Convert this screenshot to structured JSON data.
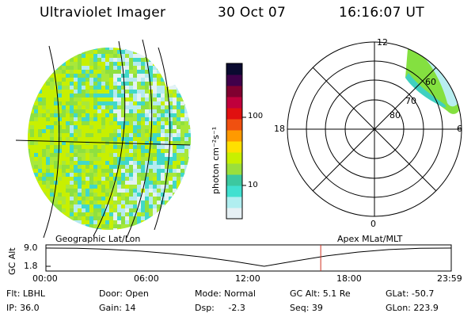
{
  "header": {
    "instrument": "Ultraviolet Imager",
    "date": "30 Oct 07",
    "time": "16:16:07 UT"
  },
  "colorbar": {
    "unit_label": "photon cm⁻²s⁻¹",
    "ticks": [
      "100",
      "10"
    ],
    "colors": [
      "#e6f0f4",
      "#b0eef0",
      "#40e0d0",
      "#3cc8a0",
      "#9adf3c",
      "#c8f000",
      "#ffe000",
      "#ff9a00",
      "#f05010",
      "#e01010",
      "#c0003c",
      "#800030",
      "#40004a",
      "#0a0a30"
    ],
    "scale": "log"
  },
  "left_panel": {
    "caption": "Geographic Lat/Lon"
  },
  "right_panel": {
    "caption": "Apex MLat/MLT",
    "mlt_labels": {
      "top": "12",
      "left": "18",
      "right": "6",
      "bottom": "0"
    },
    "mlat_labels": [
      "60",
      "70",
      "80"
    ]
  },
  "timeline": {
    "ylabel": "GC Alt",
    "ytick_top": "9.0",
    "ytick_bottom": "1.8",
    "xticks": [
      "00:00",
      "06:00",
      "12:00",
      "18:00",
      "23:59"
    ],
    "current_time_fraction": 0.678,
    "marker_color": "#d03020",
    "altitude_profile": [
      9.0,
      8.9,
      8.5,
      7.8,
      6.8,
      5.5,
      3.8,
      1.8,
      3.9,
      5.9,
      7.4,
      8.4,
      8.9,
      9.0
    ]
  },
  "footer": {
    "flt": "Flt: LBHL",
    "door": "Door: Open",
    "mode": "Mode: Normal",
    "gc_alt": "GC Alt: 5.1 Re",
    "glat": "GLat: -50.7",
    "ip": "IP: 36.0",
    "gain": "Gain: 14",
    "dsp": "Dsp:     -2.3",
    "seq": "Seq: 39",
    "glon": "GLon: 223.9"
  }
}
